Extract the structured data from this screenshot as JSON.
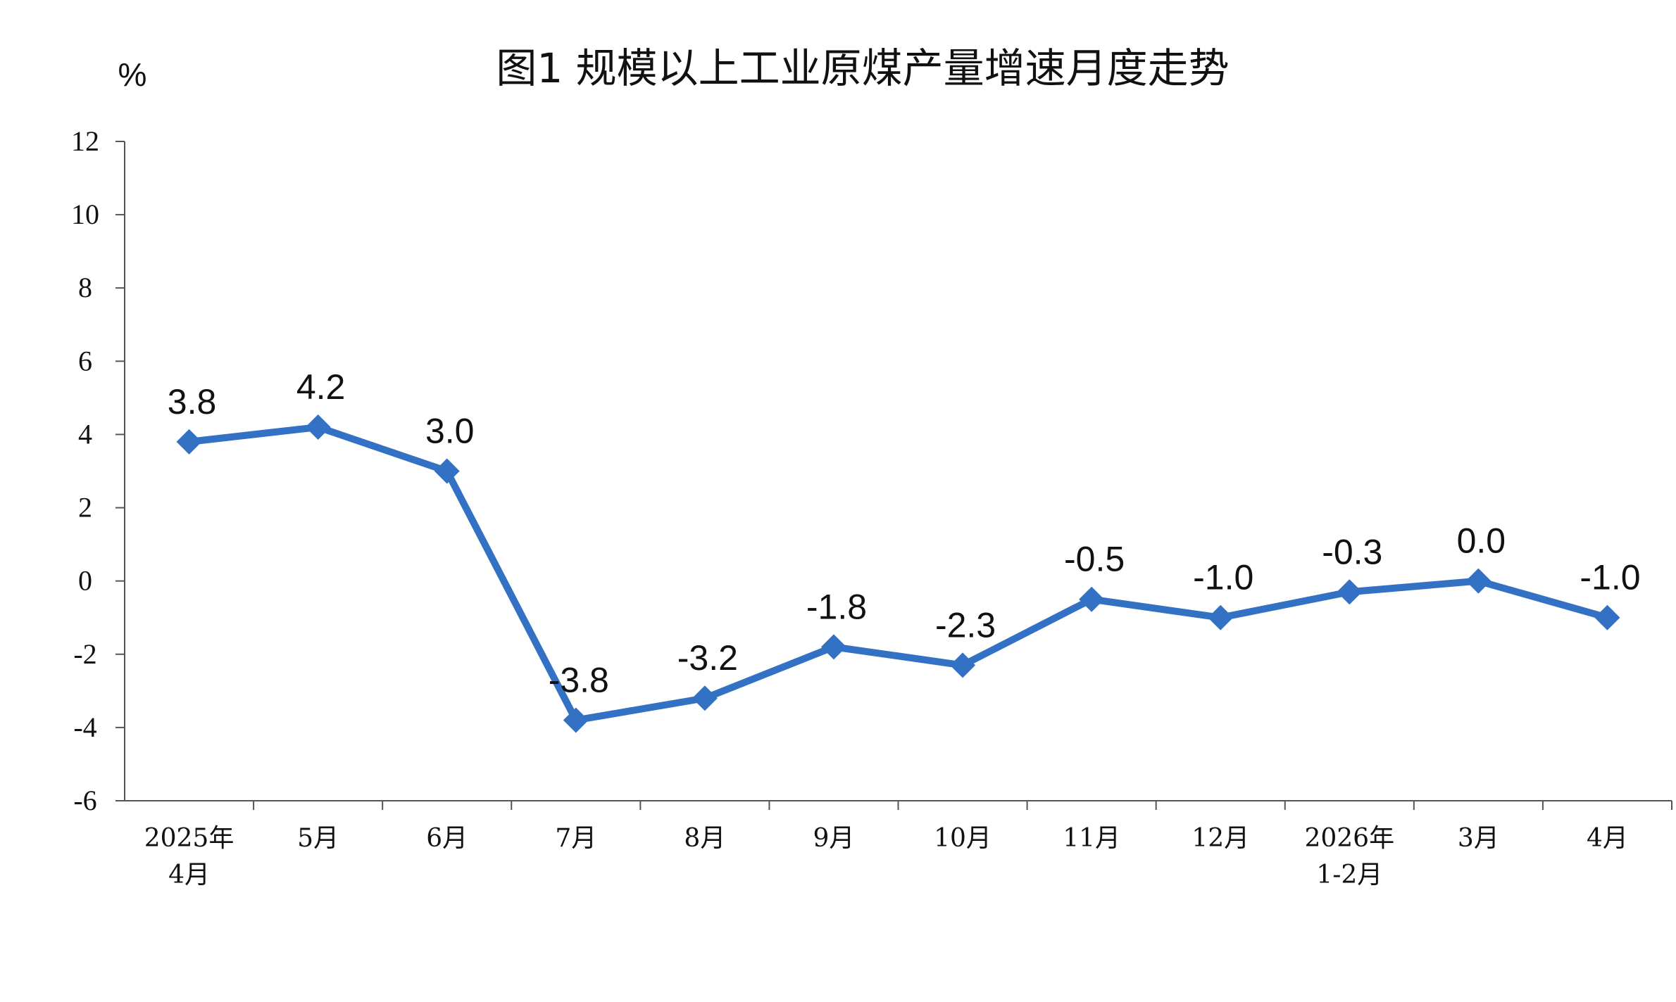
{
  "chart_data": {
    "type": "line",
    "title": "图1  规模以上工业原煤产量增速月度走势",
    "ylabel": "%",
    "xlabel": "",
    "categories": [
      [
        "2025年",
        "4月"
      ],
      [
        "5月"
      ],
      [
        "6月"
      ],
      [
        "7月"
      ],
      [
        "8月"
      ],
      [
        "9月"
      ],
      [
        "10月"
      ],
      [
        "11月"
      ],
      [
        "12月"
      ],
      [
        "2026年",
        "1-2月"
      ],
      [
        "3月"
      ],
      [
        "4月"
      ]
    ],
    "series": [
      {
        "values": [
          3.8,
          4.2,
          3.0,
          -3.8,
          -3.2,
          -1.8,
          -2.3,
          -0.5,
          -1.0,
          -0.3,
          0.0,
          -1.0
        ],
        "labels": [
          "3.8",
          "4.2",
          "3.0",
          "-3.8",
          "-3.2",
          "-1.8",
          "-2.3",
          "-0.5",
          "-1.0",
          "-0.3",
          "0.0",
          "-1.0"
        ],
        "color": "#3271c3",
        "marker": "diamond"
      }
    ],
    "ylim": [
      -6,
      12
    ],
    "yticks": [
      "12",
      "10",
      "8",
      "6",
      "4",
      "2",
      "0",
      "-2",
      "-4",
      "-6"
    ],
    "grid": false,
    "legend": "none"
  }
}
